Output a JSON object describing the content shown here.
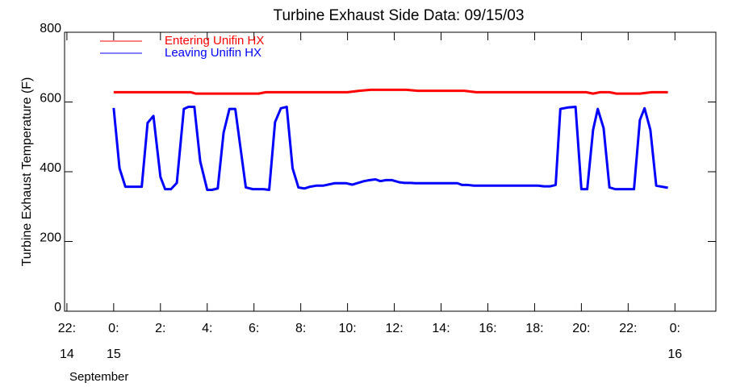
{
  "chart_data": {
    "type": "line",
    "title": "Turbine Exhaust Side Data: 09/15/03",
    "ylabel": "Turbine Exhaust Temperature (F)",
    "xlim": [
      -2.1,
      25.75
    ],
    "ylim": [
      0,
      800
    ],
    "xticks": [
      {
        "value": -2,
        "label": "22:"
      },
      {
        "value": 0,
        "label": "0:"
      },
      {
        "value": 2,
        "label": "2:"
      },
      {
        "value": 4,
        "label": "4:"
      },
      {
        "value": 6,
        "label": "6:"
      },
      {
        "value": 8,
        "label": "8:"
      },
      {
        "value": 10,
        "label": "10:"
      },
      {
        "value": 12,
        "label": "12:"
      },
      {
        "value": 14,
        "label": "14:"
      },
      {
        "value": 16,
        "label": "16:"
      },
      {
        "value": 18,
        "label": "18:"
      },
      {
        "value": 20,
        "label": "20:"
      },
      {
        "value": 22,
        "label": "22:"
      },
      {
        "value": 24,
        "label": "0:"
      }
    ],
    "x_date_labels": [
      {
        "value": -2,
        "label": "14"
      },
      {
        "value": 0,
        "label": "15"
      },
      {
        "value": 24,
        "label": "16"
      }
    ],
    "x_month_label": "September",
    "yticks": [
      0,
      200,
      400,
      600,
      800
    ],
    "legend": "upper left",
    "series": [
      {
        "name": "Entering Unifin HX",
        "color": "#ff0000",
        "x": [
          0,
          3.3,
          3.5,
          6.2,
          6.5,
          10,
          10.5,
          11,
          12.5,
          13,
          15,
          15.5,
          20.2,
          20.5,
          20.8,
          21.2,
          21.5,
          22.5,
          23,
          23.7
        ],
        "values": [
          628,
          628,
          624,
          624,
          628,
          628,
          632,
          635,
          635,
          632,
          632,
          628,
          628,
          624,
          628,
          628,
          624,
          624,
          628,
          628
        ]
      },
      {
        "name": "Leaving Unifin HX",
        "color": "#0000ff",
        "x": [
          0,
          0.25,
          0.5,
          1.2,
          1.45,
          1.7,
          2.0,
          2.2,
          2.45,
          2.7,
          3.0,
          3.2,
          3.45,
          3.7,
          4.0,
          4.2,
          4.45,
          4.7,
          4.95,
          5.2,
          5.4,
          5.65,
          5.95,
          6.4,
          6.65,
          6.9,
          7.15,
          7.4,
          7.65,
          7.9,
          8.15,
          8.4,
          8.65,
          8.95,
          9.45,
          9.95,
          10.2,
          10.4,
          10.7,
          10.95,
          11.2,
          11.4,
          11.65,
          11.9,
          12.2,
          12.45,
          12.7,
          12.9,
          14.7,
          14.9,
          15.15,
          15.4,
          18.15,
          18.4,
          18.65,
          18.9,
          19.1,
          19.4,
          19.75,
          20.0,
          20.25,
          20.5,
          20.7,
          20.95,
          21.2,
          21.45,
          22.25,
          22.5,
          22.7,
          22.95,
          23.2,
          23.7
        ],
        "values": [
          583,
          410,
          357,
          357,
          540,
          560,
          385,
          350,
          350,
          368,
          580,
          586,
          586,
          430,
          348,
          348,
          352,
          512,
          580,
          580,
          480,
          355,
          350,
          350,
          348,
          542,
          582,
          586,
          410,
          355,
          352,
          357,
          360,
          360,
          367,
          367,
          363,
          367,
          373,
          376,
          378,
          373,
          376,
          376,
          370,
          368,
          368,
          367,
          367,
          362,
          362,
          360,
          360,
          358,
          358,
          362,
          580,
          584,
          586,
          350,
          350,
          520,
          580,
          525,
          355,
          350,
          350,
          548,
          582,
          520,
          360,
          354
        ]
      }
    ]
  }
}
